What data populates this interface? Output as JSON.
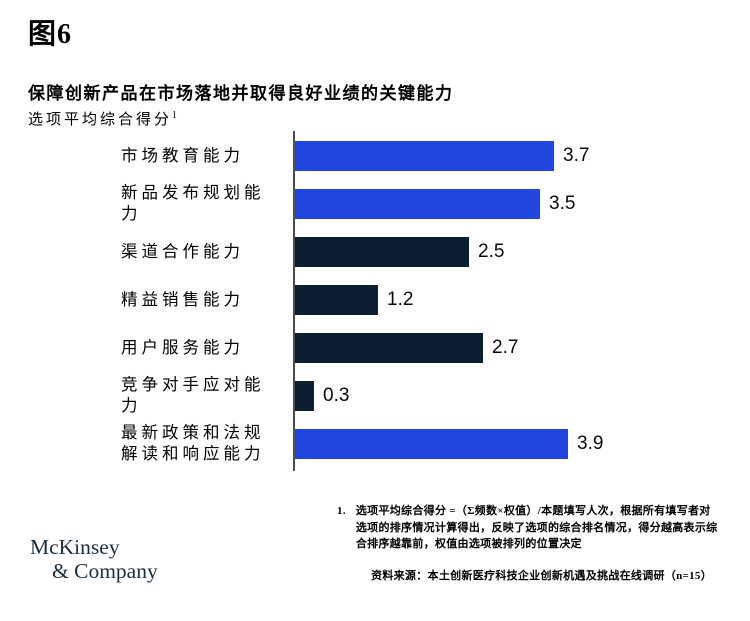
{
  "header": {
    "figure_label": "图6",
    "title": "保障创新产品在市场落地并取得良好业绩的关键能力",
    "metric_label": "选项平均综合得分",
    "metric_footnote_marker": "1"
  },
  "colors": {
    "accent_blue": "#2346E0",
    "dark_navy": "#0C1F30",
    "axis_gray": "#4D4D4D",
    "logo_navy": "#1B2F3F"
  },
  "chart_data": {
    "type": "bar",
    "orientation": "horizontal",
    "title": "保障创新产品在市场落地并取得良好业绩的关键能力",
    "xlabel": "选项平均综合得分",
    "xlim": [
      0,
      4.0
    ],
    "grid": false,
    "legend": null,
    "categories": [
      "市场教育能力",
      "新品发布规划能力",
      "渠道合作能力",
      "精益销售能力",
      "用户服务能力",
      "竞争对手应对能力",
      "最新政策和法规\n解读和响应能力"
    ],
    "values": [
      3.7,
      3.5,
      2.5,
      1.2,
      2.7,
      0.3,
      3.9
    ],
    "value_labels": [
      "3.7",
      "3.5",
      "2.5",
      "1.2",
      "2.7",
      "0.3",
      "3.9"
    ],
    "bar_colors": [
      "accent_blue",
      "accent_blue",
      "dark_navy",
      "dark_navy",
      "dark_navy",
      "dark_navy",
      "accent_blue"
    ]
  },
  "footnote": {
    "marker": "1.",
    "text": "选项平均综合得分 =（Σ频数×权值）/本题填写人次，根据所有填写者对选项的排序情况计算得出，反映了选项的综合排名情况，得分越高表示综合排序越靠前，权值由选项被排列的位置决定"
  },
  "footer": {
    "source": "资料来源：本土创新医疗科技企业创新机遇及挑战在线调研（n=15）",
    "logo_line1": "McKinsey",
    "logo_line2": "& Company"
  }
}
